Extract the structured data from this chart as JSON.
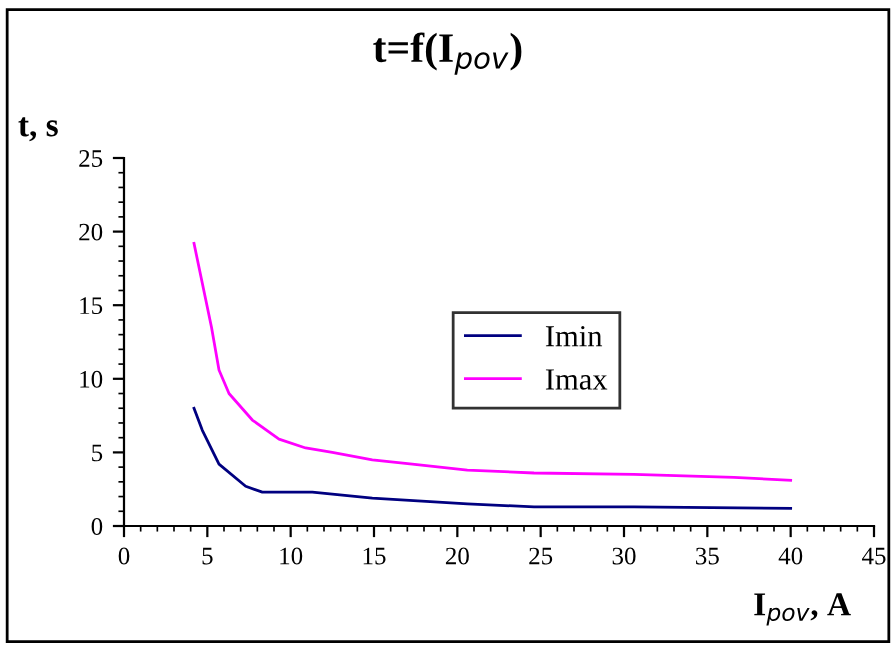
{
  "chart_data": {
    "type": "line",
    "title": "t=f(I$_{pov}$)",
    "xlabel": "I$_{pov}$, A",
    "ylabel": "t, s",
    "xlim": [
      0,
      45
    ],
    "xticks": [
      0,
      5,
      10,
      15,
      20,
      25,
      30,
      35,
      40,
      45
    ],
    "ylim": [
      0,
      25
    ],
    "yticks": [
      0,
      5,
      10,
      15,
      20,
      25
    ],
    "grid": false,
    "legend": "center",
    "marker": "none",
    "line_style": "solid",
    "series": [
      {
        "name": "Imin",
        "color": "#000080",
        "x": [
          4.2,
          4.7,
          5.7,
          7.3,
          8.3,
          11.3,
          14.9,
          20.6,
          24.6,
          30.6,
          40
        ],
        "values": [
          8.0,
          6.5,
          4.2,
          2.7,
          2.3,
          2.3,
          1.9,
          1.5,
          1.3,
          1.3,
          1.2
        ]
      },
      {
        "name": "Imax",
        "color": "#ff00ff",
        "x": [
          4.2,
          5.25,
          5.7,
          6.3,
          7.7,
          9.3,
          10.9,
          12.5,
          14.9,
          17.3,
          20.6,
          24.6,
          30.6,
          36.6,
          40
        ],
        "values": [
          19.2,
          13.5,
          10.6,
          9.0,
          7.2,
          5.9,
          5.3,
          5.0,
          4.5,
          4.2,
          3.8,
          3.6,
          3.5,
          3.3,
          3.1
        ]
      }
    ]
  }
}
